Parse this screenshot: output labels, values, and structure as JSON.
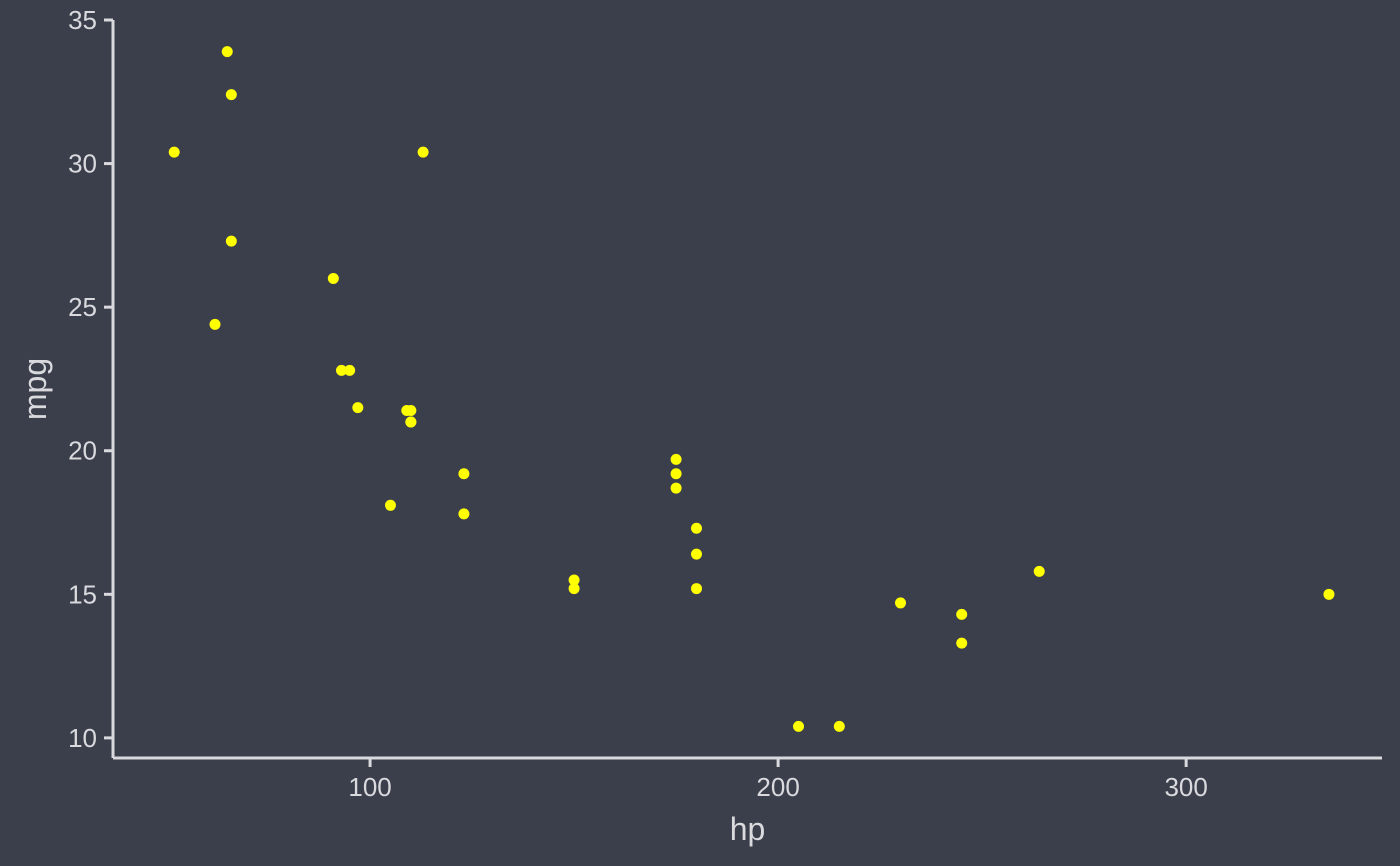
{
  "chart_data": {
    "type": "scatter",
    "title": "",
    "xlabel": "hp",
    "ylabel": "mpg",
    "xlim": [
      37,
      348
    ],
    "ylim": [
      9.3,
      35
    ],
    "xticks": [
      100,
      200,
      300
    ],
    "yticks": [
      10,
      15,
      20,
      25,
      30,
      35
    ],
    "grid": false,
    "legend": "none",
    "series": [
      {
        "x": [
          110,
          110,
          93,
          110,
          175,
          105,
          245,
          62,
          95,
          123,
          123,
          180,
          180,
          180,
          205,
          215,
          230,
          66,
          52,
          65,
          97,
          150,
          150,
          245,
          175,
          66,
          91,
          113,
          264,
          175,
          335,
          109
        ],
        "y": [
          21.0,
          21.0,
          22.8,
          21.4,
          18.7,
          18.1,
          14.3,
          24.4,
          22.8,
          19.2,
          17.8,
          16.4,
          17.3,
          15.2,
          10.4,
          10.4,
          14.7,
          32.4,
          30.4,
          33.9,
          21.5,
          15.5,
          15.2,
          13.3,
          19.2,
          27.3,
          26.0,
          30.4,
          15.8,
          19.7,
          15.0,
          21.4
        ]
      }
    ],
    "colors": {
      "background": "#3b3f4b",
      "point": "#ffff00",
      "axis": "#d9d9de",
      "text": "#d9d9de"
    }
  }
}
